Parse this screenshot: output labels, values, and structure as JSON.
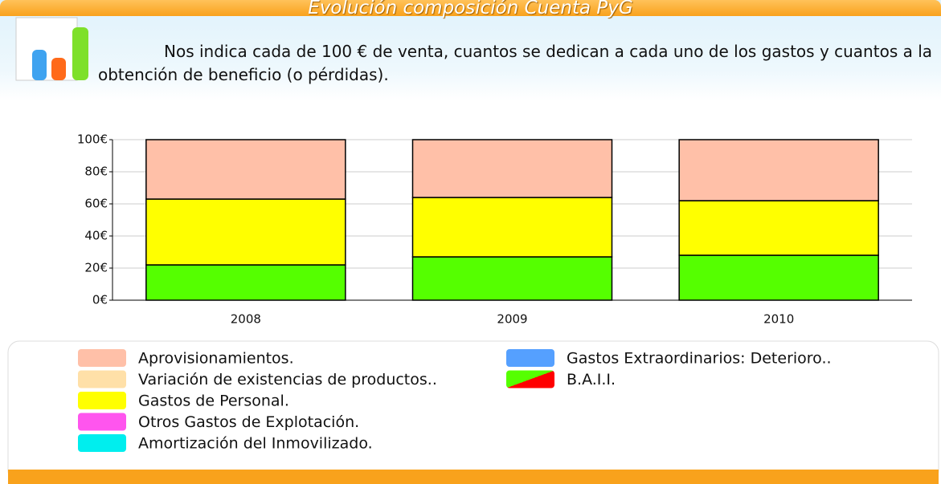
{
  "header": {
    "title": "Evolución composición Cuenta PyG",
    "description": "Nos indica cada de 100 € de venta, cuantos se dedican a cada uno de los gastos y cuantos a la obtención de beneficio (o pérdidas)."
  },
  "chart_data": {
    "type": "bar",
    "stacked": true,
    "categories": [
      "2008",
      "2009",
      "2010"
    ],
    "ylim": [
      0,
      100
    ],
    "yticks": [
      {
        "value": 0,
        "label": "0€"
      },
      {
        "value": 20,
        "label": "20€"
      },
      {
        "value": 40,
        "label": "40€"
      },
      {
        "value": 60,
        "label": "60€"
      },
      {
        "value": 80,
        "label": "80€"
      },
      {
        "value": 100,
        "label": "100€"
      }
    ],
    "grid": true,
    "series": [
      {
        "name": "Aprovisionamientos.",
        "color": "#ffc0a8",
        "values": [
          37,
          36,
          38
        ]
      },
      {
        "name": "Variación de existencias de productos..",
        "color": "#ffe0a8",
        "values": [
          0,
          0,
          0
        ]
      },
      {
        "name": "Gastos de Personal.",
        "color": "#ffff00",
        "values": [
          41,
          37,
          34
        ]
      },
      {
        "name": "Otros Gastos de Explotación.",
        "color": "#ff55ee",
        "values": [
          0,
          0,
          0
        ]
      },
      {
        "name": "Amortización del Inmovilizado.",
        "color": "#00eeee",
        "values": [
          0,
          0,
          0
        ]
      },
      {
        "name": "Gastos Extraordinarios: Deterioro..",
        "color": "#55a0ff",
        "values": [
          0,
          0,
          0
        ]
      },
      {
        "name": "B.A.I.I.",
        "color": "#55ff00",
        "negative_color": "#ff0000",
        "values": [
          22,
          27,
          28
        ]
      }
    ]
  }
}
